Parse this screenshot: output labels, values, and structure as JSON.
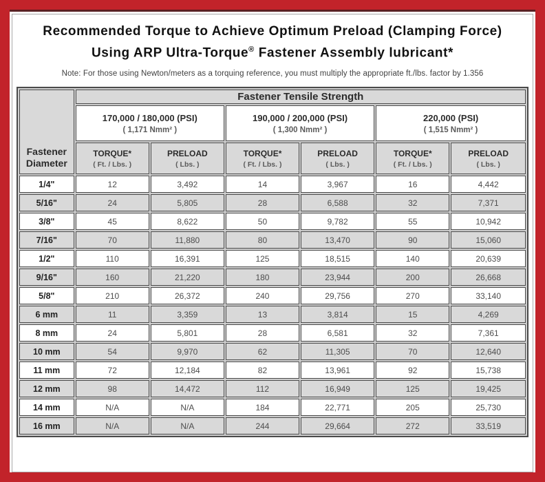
{
  "colors": {
    "frame_red": "#c2232a",
    "maroon_line": "#5a2023",
    "cell_gray": "#d9d9d9",
    "cell_border": "#4a4a4a"
  },
  "title": {
    "line1": "Recommended Torque to Achieve Optimum Preload (Clamping Force)",
    "line2_prefix": "Using ARP Ultra-Torque",
    "line2_reg": "®",
    "line2_suffix": " Fastener Assembly lubricant*"
  },
  "note": "Note: For those using Newton/meters as a torquing reference, you must multiply the appropriate ft./lbs. factor by 1.356",
  "table": {
    "corner_header": {
      "line1": "Fastener",
      "line2": "Diameter"
    },
    "tensile_header": "Fastener Tensile Strength",
    "psi_groups": [
      {
        "psi": "170,000 / 180,000 (PSI)",
        "nmm": "( 1,171 Nmm² )"
      },
      {
        "psi": "190,000 / 200,000 (PSI)",
        "nmm": "( 1,300 Nmm² )"
      },
      {
        "psi": "220,000 (PSI)",
        "nmm": "( 1,515 Nmm² )"
      }
    ],
    "col_headers": {
      "torque_label": "TORQUE*",
      "torque_sub": "( Ft. / Lbs. )",
      "preload_label": "PRELOAD",
      "preload_sub": "( Lbs. )"
    },
    "rows": [
      {
        "diameter": "1/4\"",
        "values": [
          "12",
          "3,492",
          "14",
          "3,967",
          "16",
          "4,442"
        ]
      },
      {
        "diameter": "5/16\"",
        "values": [
          "24",
          "5,805",
          "28",
          "6,588",
          "32",
          "7,371"
        ]
      },
      {
        "diameter": "3/8\"",
        "values": [
          "45",
          "8,622",
          "50",
          "9,782",
          "55",
          "10,942"
        ]
      },
      {
        "diameter": "7/16\"",
        "values": [
          "70",
          "11,880",
          "80",
          "13,470",
          "90",
          "15,060"
        ]
      },
      {
        "diameter": "1/2\"",
        "values": [
          "110",
          "16,391",
          "125",
          "18,515",
          "140",
          "20,639"
        ]
      },
      {
        "diameter": "9/16\"",
        "values": [
          "160",
          "21,220",
          "180",
          "23,944",
          "200",
          "26,668"
        ]
      },
      {
        "diameter": "5/8\"",
        "values": [
          "210",
          "26,372",
          "240",
          "29,756",
          "270",
          "33,140"
        ]
      },
      {
        "diameter": "6 mm",
        "values": [
          "11",
          "3,359",
          "13",
          "3,814",
          "15",
          "4,269"
        ]
      },
      {
        "diameter": "8 mm",
        "values": [
          "24",
          "5,801",
          "28",
          "6,581",
          "32",
          "7,361"
        ]
      },
      {
        "diameter": "10 mm",
        "values": [
          "54",
          "9,970",
          "62",
          "11,305",
          "70",
          "12,640"
        ]
      },
      {
        "diameter": "11 mm",
        "values": [
          "72",
          "12,184",
          "82",
          "13,961",
          "92",
          "15,738"
        ]
      },
      {
        "diameter": "12 mm",
        "values": [
          "98",
          "14,472",
          "112",
          "16,949",
          "125",
          "19,425"
        ]
      },
      {
        "diameter": "14 mm",
        "values": [
          "N/A",
          "N/A",
          "184",
          "22,771",
          "205",
          "25,730"
        ]
      },
      {
        "diameter": "16 mm",
        "values": [
          "N/A",
          "N/A",
          "244",
          "29,664",
          "272",
          "33,519"
        ]
      }
    ]
  }
}
